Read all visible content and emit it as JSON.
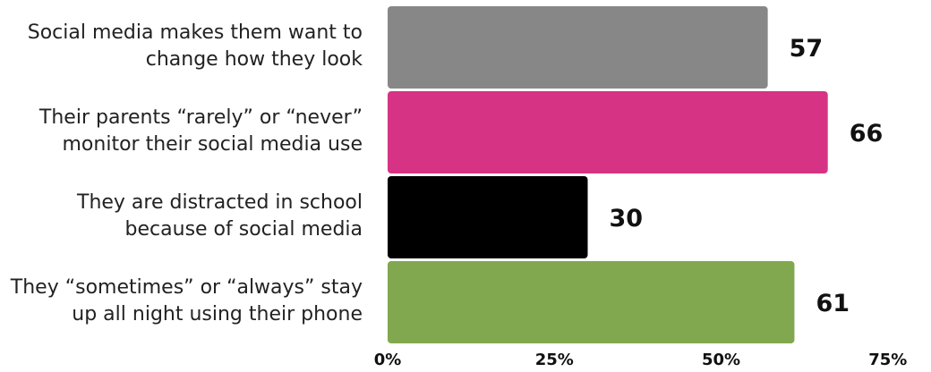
{
  "chart_data": {
    "type": "bar",
    "orientation": "horizontal",
    "categories": [
      [
        "Social media makes them want to",
        "change how they look"
      ],
      [
        "Their parents “rarely” or “never”",
        "monitor their social media use"
      ],
      [
        "They are distracted in school",
        "because of social media"
      ],
      [
        "They “sometimes” or “always” stay",
        "up all night using their phone"
      ]
    ],
    "values": [
      57,
      66,
      30,
      61
    ],
    "colors": [
      "#878787",
      "#d63384",
      "#000000",
      "#81a84e"
    ],
    "xlim": [
      0,
      75
    ],
    "xticks": [
      0,
      25,
      50,
      75
    ],
    "xtick_labels": [
      "0%",
      "25%",
      "50%",
      "75%"
    ],
    "title": "",
    "xlabel": "",
    "ylabel": "",
    "grid": false,
    "legend": "none"
  }
}
